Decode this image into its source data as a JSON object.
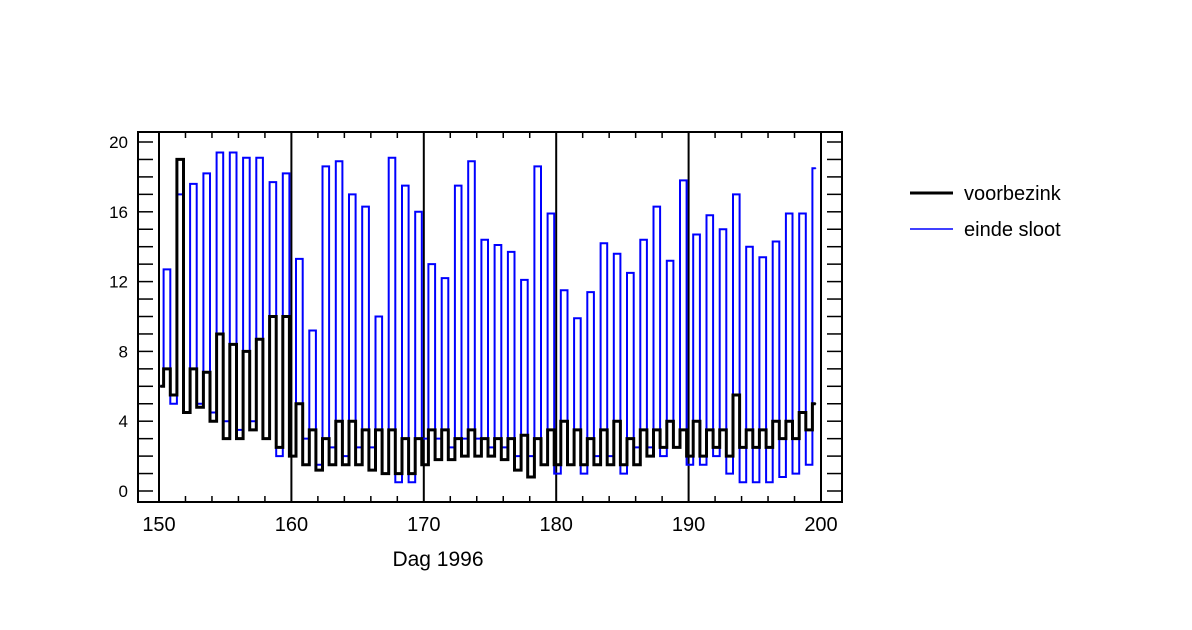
{
  "chart_data": {
    "type": "line",
    "title": "",
    "xlabel": "Dag 1996",
    "ylabel": "",
    "xlim": [
      148.5,
      201.5
    ],
    "ylim": [
      -0.7,
      20.6
    ],
    "x_ticks": [
      150,
      160,
      170,
      180,
      190,
      200
    ],
    "x_tick_labels": [
      "150",
      "160",
      "170",
      "180",
      "190",
      "200"
    ],
    "y_ticks": [
      0,
      4,
      8,
      12,
      16,
      20
    ],
    "y_tick_labels": [
      "0",
      "4",
      "8",
      "12",
      "16",
      "20"
    ],
    "grid": "vertical lines at labelled x ticks",
    "legend_position": "right, outside plot",
    "x": [
      150.1,
      150.6,
      151.1,
      151.6,
      152.1,
      152.6,
      153.1,
      153.6,
      154.1,
      154.6,
      155.1,
      155.6,
      156.1,
      156.6,
      157.1,
      157.6,
      158.1,
      158.6,
      159.1,
      159.6,
      160.1,
      160.6,
      161.1,
      161.6,
      162.1,
      162.6,
      163.1,
      163.6,
      164.1,
      164.6,
      165.1,
      165.6,
      166.1,
      166.6,
      167.1,
      167.6,
      168.1,
      168.6,
      169.1,
      169.6,
      170.1,
      170.6,
      171.1,
      171.6,
      172.1,
      172.6,
      173.1,
      173.6,
      174.1,
      174.6,
      175.1,
      175.6,
      176.1,
      176.6,
      177.1,
      177.6,
      178.1,
      178.6,
      179.1,
      179.6,
      180.1,
      180.6,
      181.1,
      181.6,
      182.1,
      182.6,
      183.1,
      183.6,
      184.1,
      184.6,
      185.1,
      185.6,
      186.1,
      186.6,
      187.1,
      187.6,
      188.1,
      188.6,
      189.1,
      189.6,
      190.1,
      190.6,
      191.1,
      191.6,
      192.1,
      192.6,
      193.1,
      193.6,
      194.1,
      194.6,
      195.1,
      195.6,
      196.1,
      196.6,
      197.1,
      197.6,
      198.1,
      198.6,
      199.1,
      199.6
    ],
    "series": [
      {
        "name": "voorbezink",
        "color": "#000000",
        "values": [
          6,
          7,
          5.5,
          19,
          4.5,
          7,
          4.8,
          6.8,
          4,
          9,
          3,
          8.4,
          3,
          8,
          3.5,
          8.7,
          3,
          10,
          2.5,
          10,
          2,
          5,
          1.5,
          3.5,
          1.2,
          3,
          1.5,
          4,
          1.5,
          4,
          1.5,
          3.5,
          1.2,
          3.5,
          1,
          3.5,
          1,
          3,
          1,
          3,
          1.5,
          3.5,
          1.8,
          3.5,
          1.8,
          3,
          2,
          3.5,
          2,
          3,
          2,
          3,
          1.8,
          3,
          1.2,
          3.2,
          0.8,
          3,
          1.5,
          3.5,
          1.5,
          4,
          1.5,
          3.5,
          1.5,
          3,
          1.5,
          3.5,
          1.5,
          4,
          1.5,
          3,
          1.5,
          3.5,
          2,
          3.5,
          2.5,
          4,
          2.5,
          3.5,
          2,
          4,
          2,
          3.5,
          2.5,
          3.5,
          2,
          5.5,
          2.5,
          3.5,
          2.5,
          3.5,
          2.5,
          4,
          3,
          4,
          3,
          4.5,
          3.5,
          5
        ]
      },
      {
        "name": "einde sloot",
        "color": "#0000ff",
        "values": [
          6,
          12.7,
          5,
          17,
          4.5,
          17.6,
          5,
          18.2,
          4.5,
          19.4,
          4,
          19.4,
          3.5,
          19.1,
          4,
          19.1,
          3,
          17.7,
          2,
          18.2,
          2,
          13.3,
          3,
          9.2,
          1.5,
          18.6,
          2.5,
          18.9,
          2,
          17,
          2.5,
          16.3,
          2.5,
          10,
          1,
          19.1,
          0.5,
          17.5,
          0.5,
          16,
          3,
          13,
          3,
          12.2,
          2.5,
          17.5,
          3,
          18.9,
          3,
          14.4,
          2.5,
          14.1,
          2.5,
          13.7,
          2,
          12.1,
          2,
          18.6,
          1.5,
          15.9,
          1,
          11.5,
          1.5,
          9.9,
          1,
          11.4,
          2,
          14.2,
          2,
          13.6,
          1,
          12.5,
          2.5,
          14.4,
          2.5,
          16.3,
          2,
          13.2,
          2.5,
          17.8,
          1.5,
          14.7,
          1.5,
          15.8,
          2,
          15,
          1,
          17,
          0.5,
          14,
          0.5,
          13.4,
          0.5,
          14.3,
          0.8,
          15.9,
          1,
          15.9,
          1.5,
          18.5
        ]
      }
    ]
  }
}
